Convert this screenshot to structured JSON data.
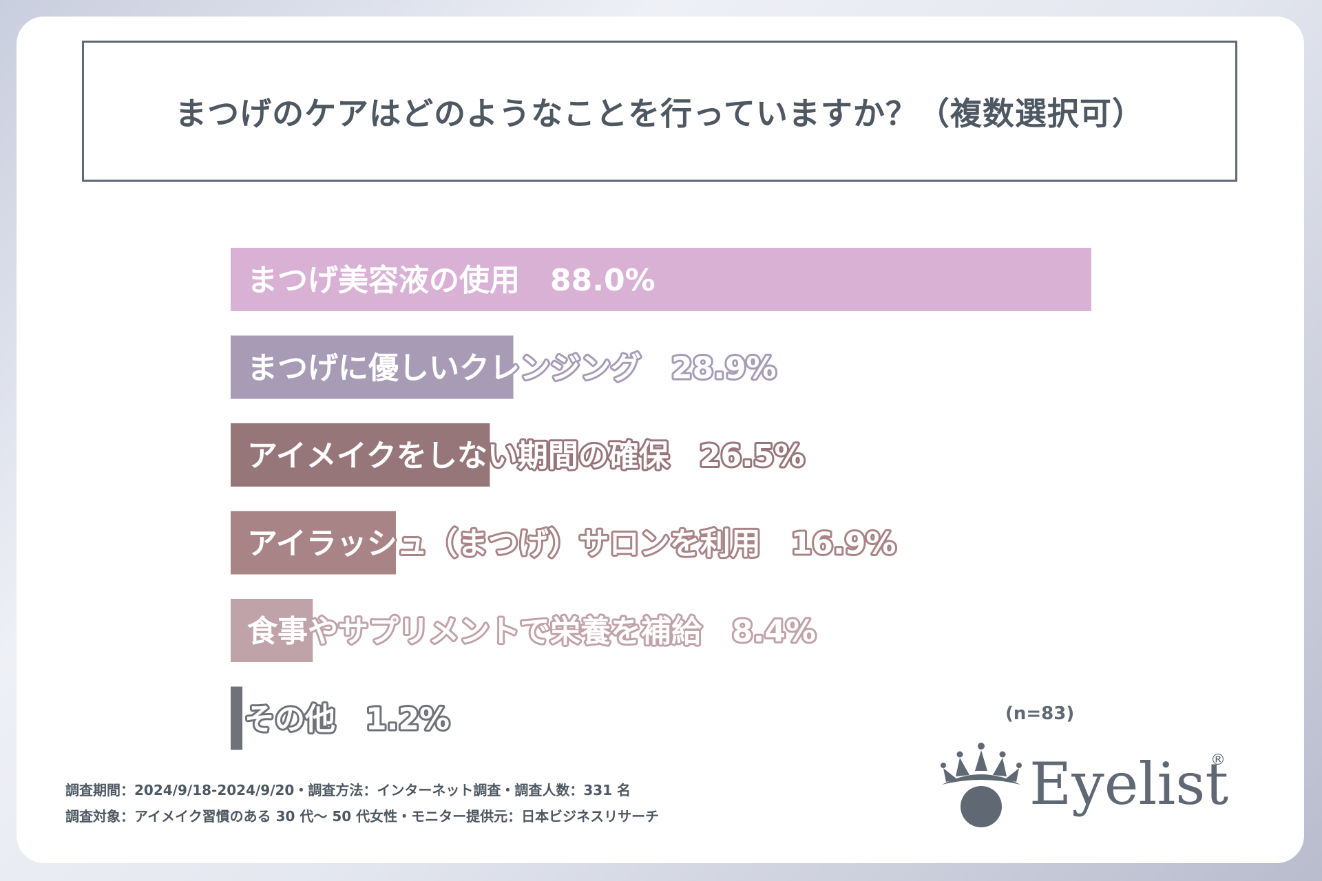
{
  "title": "まつげのケアはどのようなことを行っていますか？（複数選択可）",
  "sample_size": "(n=83)",
  "footer": {
    "line1": "調査期間：2024/9/18-2024/9/20・調査方法：インターネット調査・調査人数：331 名",
    "line2": "調査対象：アイメイク習慣のある 30 代～ 50 代女性・モニター提供元：日本ビジネスリサーチ"
  },
  "logo": {
    "text": "Eyelist",
    "registered": "®",
    "icon": "crown-eye-icon"
  },
  "chart_data": {
    "type": "bar",
    "orientation": "horizontal",
    "categories": [
      "まつげ美容液の使用",
      "まつげに優しいクレンジング",
      "アイメイクをしない期間の確保",
      "アイラッシュ（まつげ）サロンを利用",
      "食事やサプリメントで栄養を補給",
      "その他"
    ],
    "values": [
      88.0,
      28.9,
      26.5,
      16.9,
      8.4,
      1.2
    ],
    "value_labels": [
      "88.0%",
      "28.9%",
      "26.5%",
      "16.9%",
      "8.4%",
      "1.2%"
    ],
    "colors": [
      "#d9b1d5",
      "#a79bb6",
      "#97767a",
      "#a88486",
      "#c0a3a8",
      "#6f7379"
    ],
    "xlim": [
      0,
      88.0
    ],
    "grid": false
  }
}
